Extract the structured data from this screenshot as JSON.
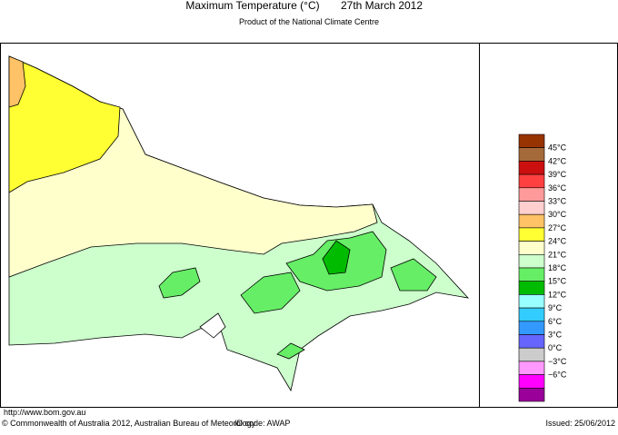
{
  "header": {
    "title": "Maximum Temperature (°C)",
    "date": "27th March 2012",
    "subtitle": "Product of the National Climate Centre"
  },
  "legend": {
    "colors": [
      "#973300",
      "#a56a3a",
      "#cc1010",
      "#ff4040",
      "#ff9a9a",
      "#ffcfcf",
      "#ffc266",
      "#ffff33",
      "#ffffcc",
      "#ccffcc",
      "#66ee66",
      "#00bb00",
      "#99ffff",
      "#33ccff",
      "#3399ff",
      "#6666ff",
      "#cccccc",
      "#ff99ff",
      "#ff00ff",
      "#990099"
    ],
    "labels": [
      "45°C",
      "42°C",
      "39°C",
      "36°C",
      "33°C",
      "30°C",
      "27°C",
      "24°C",
      "21°C",
      "18°C",
      "15°C",
      "12°C",
      "9°C",
      "6°C",
      "3°C",
      "0°C",
      "−3°C",
      "−6°C"
    ]
  },
  "footer": {
    "url": "http://www.bom.gov.au",
    "copyright": "© Commonwealth of Australia 2012, Australian Bureau of Meteorology",
    "id_code": "ID code: AWAP",
    "issued": "Issued: 25/06/2012"
  }
}
